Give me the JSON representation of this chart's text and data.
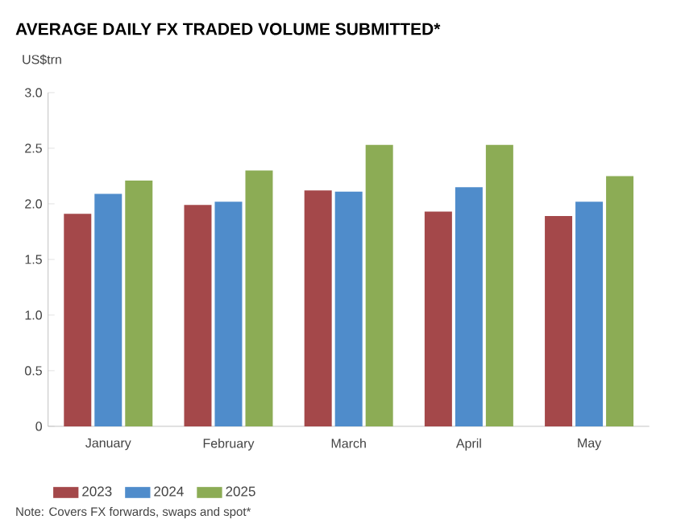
{
  "chart_data": {
    "type": "bar",
    "title": "AVERAGE DAILY FX TRADED VOLUME SUBMITTED*",
    "ylabel": "US$trn",
    "categories": [
      "January",
      "February",
      "March",
      "April",
      "May"
    ],
    "series": [
      {
        "name": "2023",
        "color": "#a4484a",
        "values": [
          1.91,
          1.99,
          2.12,
          1.93,
          1.89
        ]
      },
      {
        "name": "2024",
        "color": "#4f8ccb",
        "values": [
          2.09,
          2.02,
          2.11,
          2.15,
          2.02
        ]
      },
      {
        "name": "2025",
        "color": "#8cac55",
        "values": [
          2.21,
          2.3,
          2.53,
          2.53,
          2.25
        ]
      }
    ],
    "ylim": [
      0,
      3
    ],
    "yticks": [
      {
        "value": 0,
        "label": "0"
      },
      0.5,
      {
        "value": 1,
        "label": "1.0"
      },
      1.5,
      {
        "value": 2,
        "label": "2.0"
      },
      2.5,
      {
        "value": 3,
        "label": "3.0"
      }
    ],
    "grid": false,
    "legend": "bottom left",
    "annotations": [
      "Note: Covers FX forwards, swaps and spot*"
    ]
  }
}
